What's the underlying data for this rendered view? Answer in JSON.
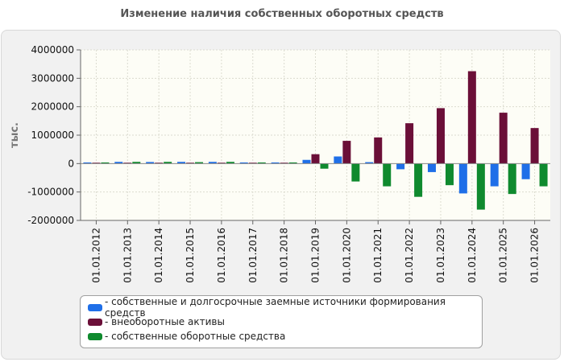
{
  "chart_data": {
    "type": "bar",
    "title": "Изменение наличия собственных оборотных средств",
    "ylabel": "тыс.",
    "xlabel": "",
    "ylim": [
      -2000000,
      4000000
    ],
    "yticks": [
      4000000,
      3000000,
      2000000,
      1000000,
      0,
      -1000000,
      -2000000
    ],
    "ytick_labels": [
      "4000000",
      "3000000",
      "2000000",
      "1000000",
      "0",
      "-1000000",
      "-2000000"
    ],
    "grid": true,
    "legend_position": "bottom",
    "categories": [
      "01.01.2012",
      "01.01.2013",
      "01.01.2014",
      "01.01.2015",
      "01.01.2016",
      "01.01.2017",
      "01.01.2018",
      "01.01.2019",
      "01.01.2020",
      "01.01.2021",
      "01.01.2022",
      "01.01.2023",
      "01.01.2024",
      "01.01.2025",
      "01.01.2026"
    ],
    "series": [
      {
        "name": "- собственные и долгосрочные заемные источники формирования средств",
        "color": "#1f6fe8",
        "values": [
          40000,
          60000,
          55000,
          60000,
          60000,
          40000,
          40000,
          130000,
          250000,
          50000,
          -200000,
          -300000,
          -1050000,
          -800000,
          -550000
        ]
      },
      {
        "name": "- внеоборотные активы",
        "color": "#6b0f38",
        "values": [
          30000,
          30000,
          30000,
          30000,
          30000,
          30000,
          30000,
          330000,
          800000,
          920000,
          1420000,
          1950000,
          3250000,
          1790000,
          1250000
        ]
      },
      {
        "name": "- собственные оборотные средства",
        "color": "#0f8a2e",
        "values": [
          40000,
          60000,
          60000,
          50000,
          60000,
          40000,
          40000,
          -180000,
          -630000,
          -800000,
          -1170000,
          -760000,
          -1620000,
          -1070000,
          -800000
        ]
      }
    ]
  }
}
